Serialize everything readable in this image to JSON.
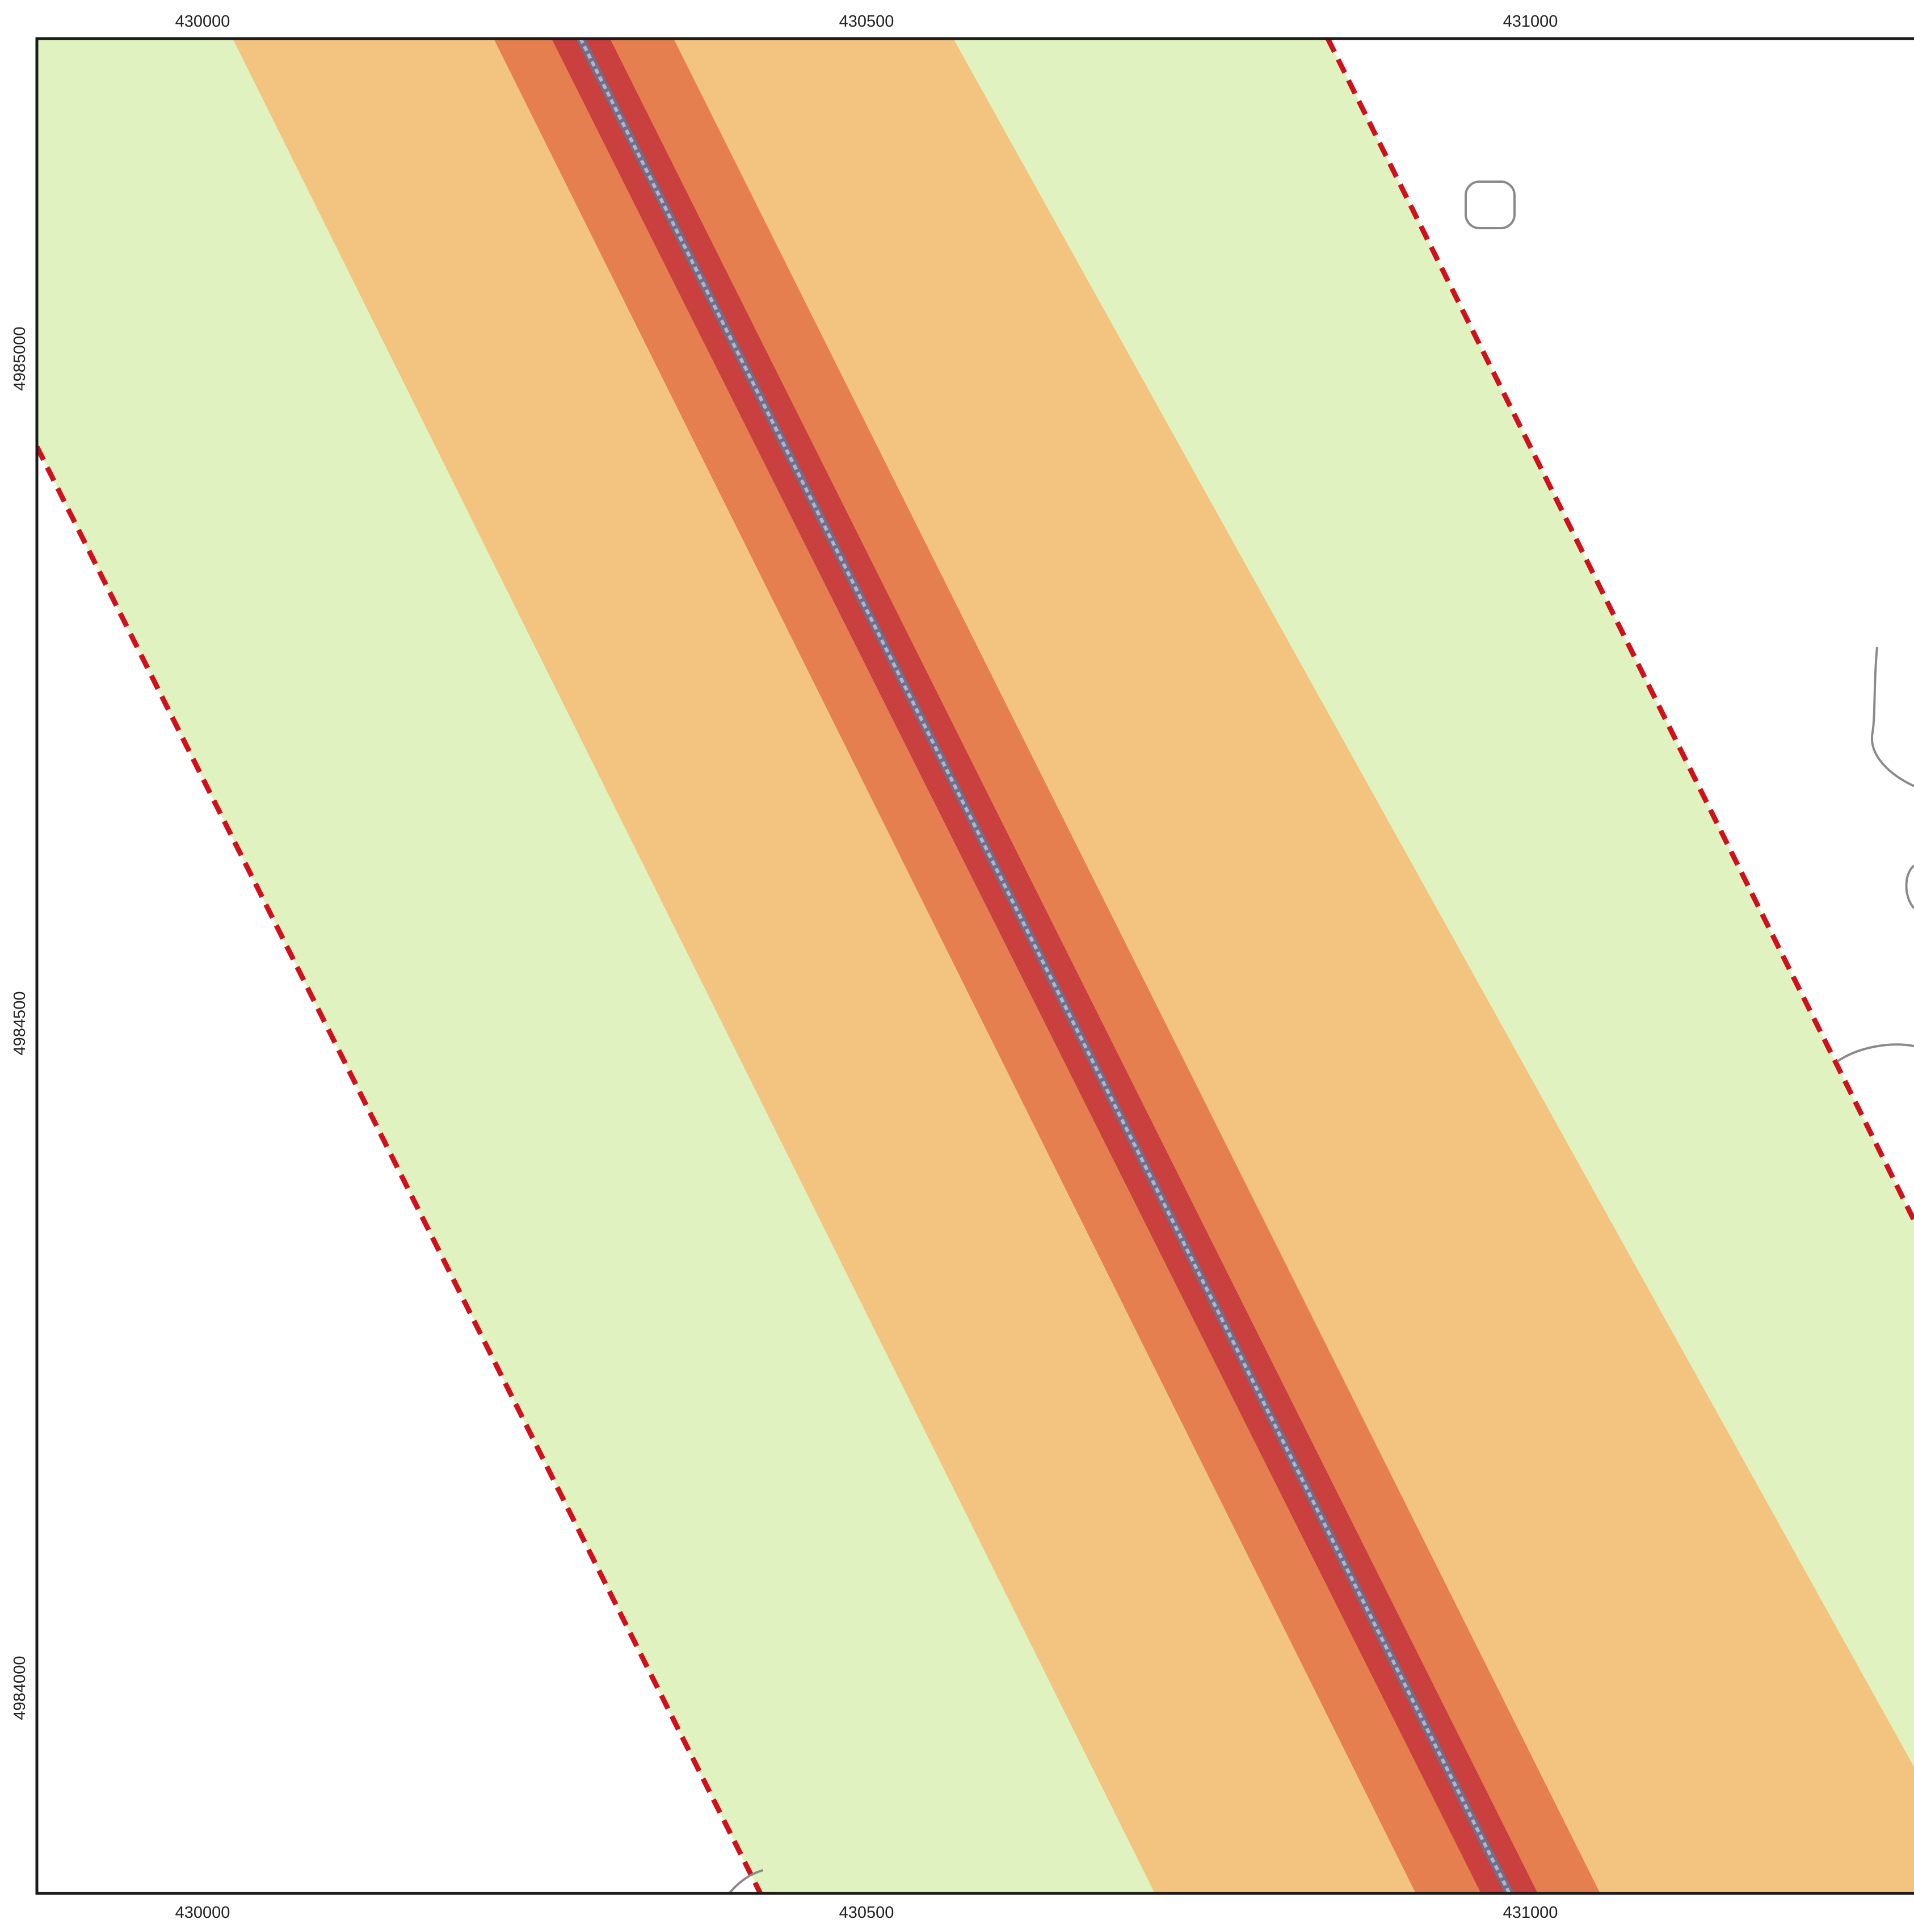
{
  "map": {
    "x_ticks_top": [
      "430000",
      "430500",
      "431000"
    ],
    "x_ticks_bottom": [
      "430000",
      "430500",
      "431000"
    ],
    "y_ticks_left": [
      "4985000",
      "4984500",
      "4984000"
    ],
    "colors": {
      "outer_zone": "#e0f2c0",
      "middle_zone": "#f3c47f",
      "inner_zone": "#e57f4f",
      "core_zone": "#c9403e",
      "centerline": "#7b7b9a",
      "study_boundary": "#d0101a",
      "frame": "#1a1a1a",
      "background": "#ffffff",
      "contours": "#8a8a8a"
    }
  }
}
